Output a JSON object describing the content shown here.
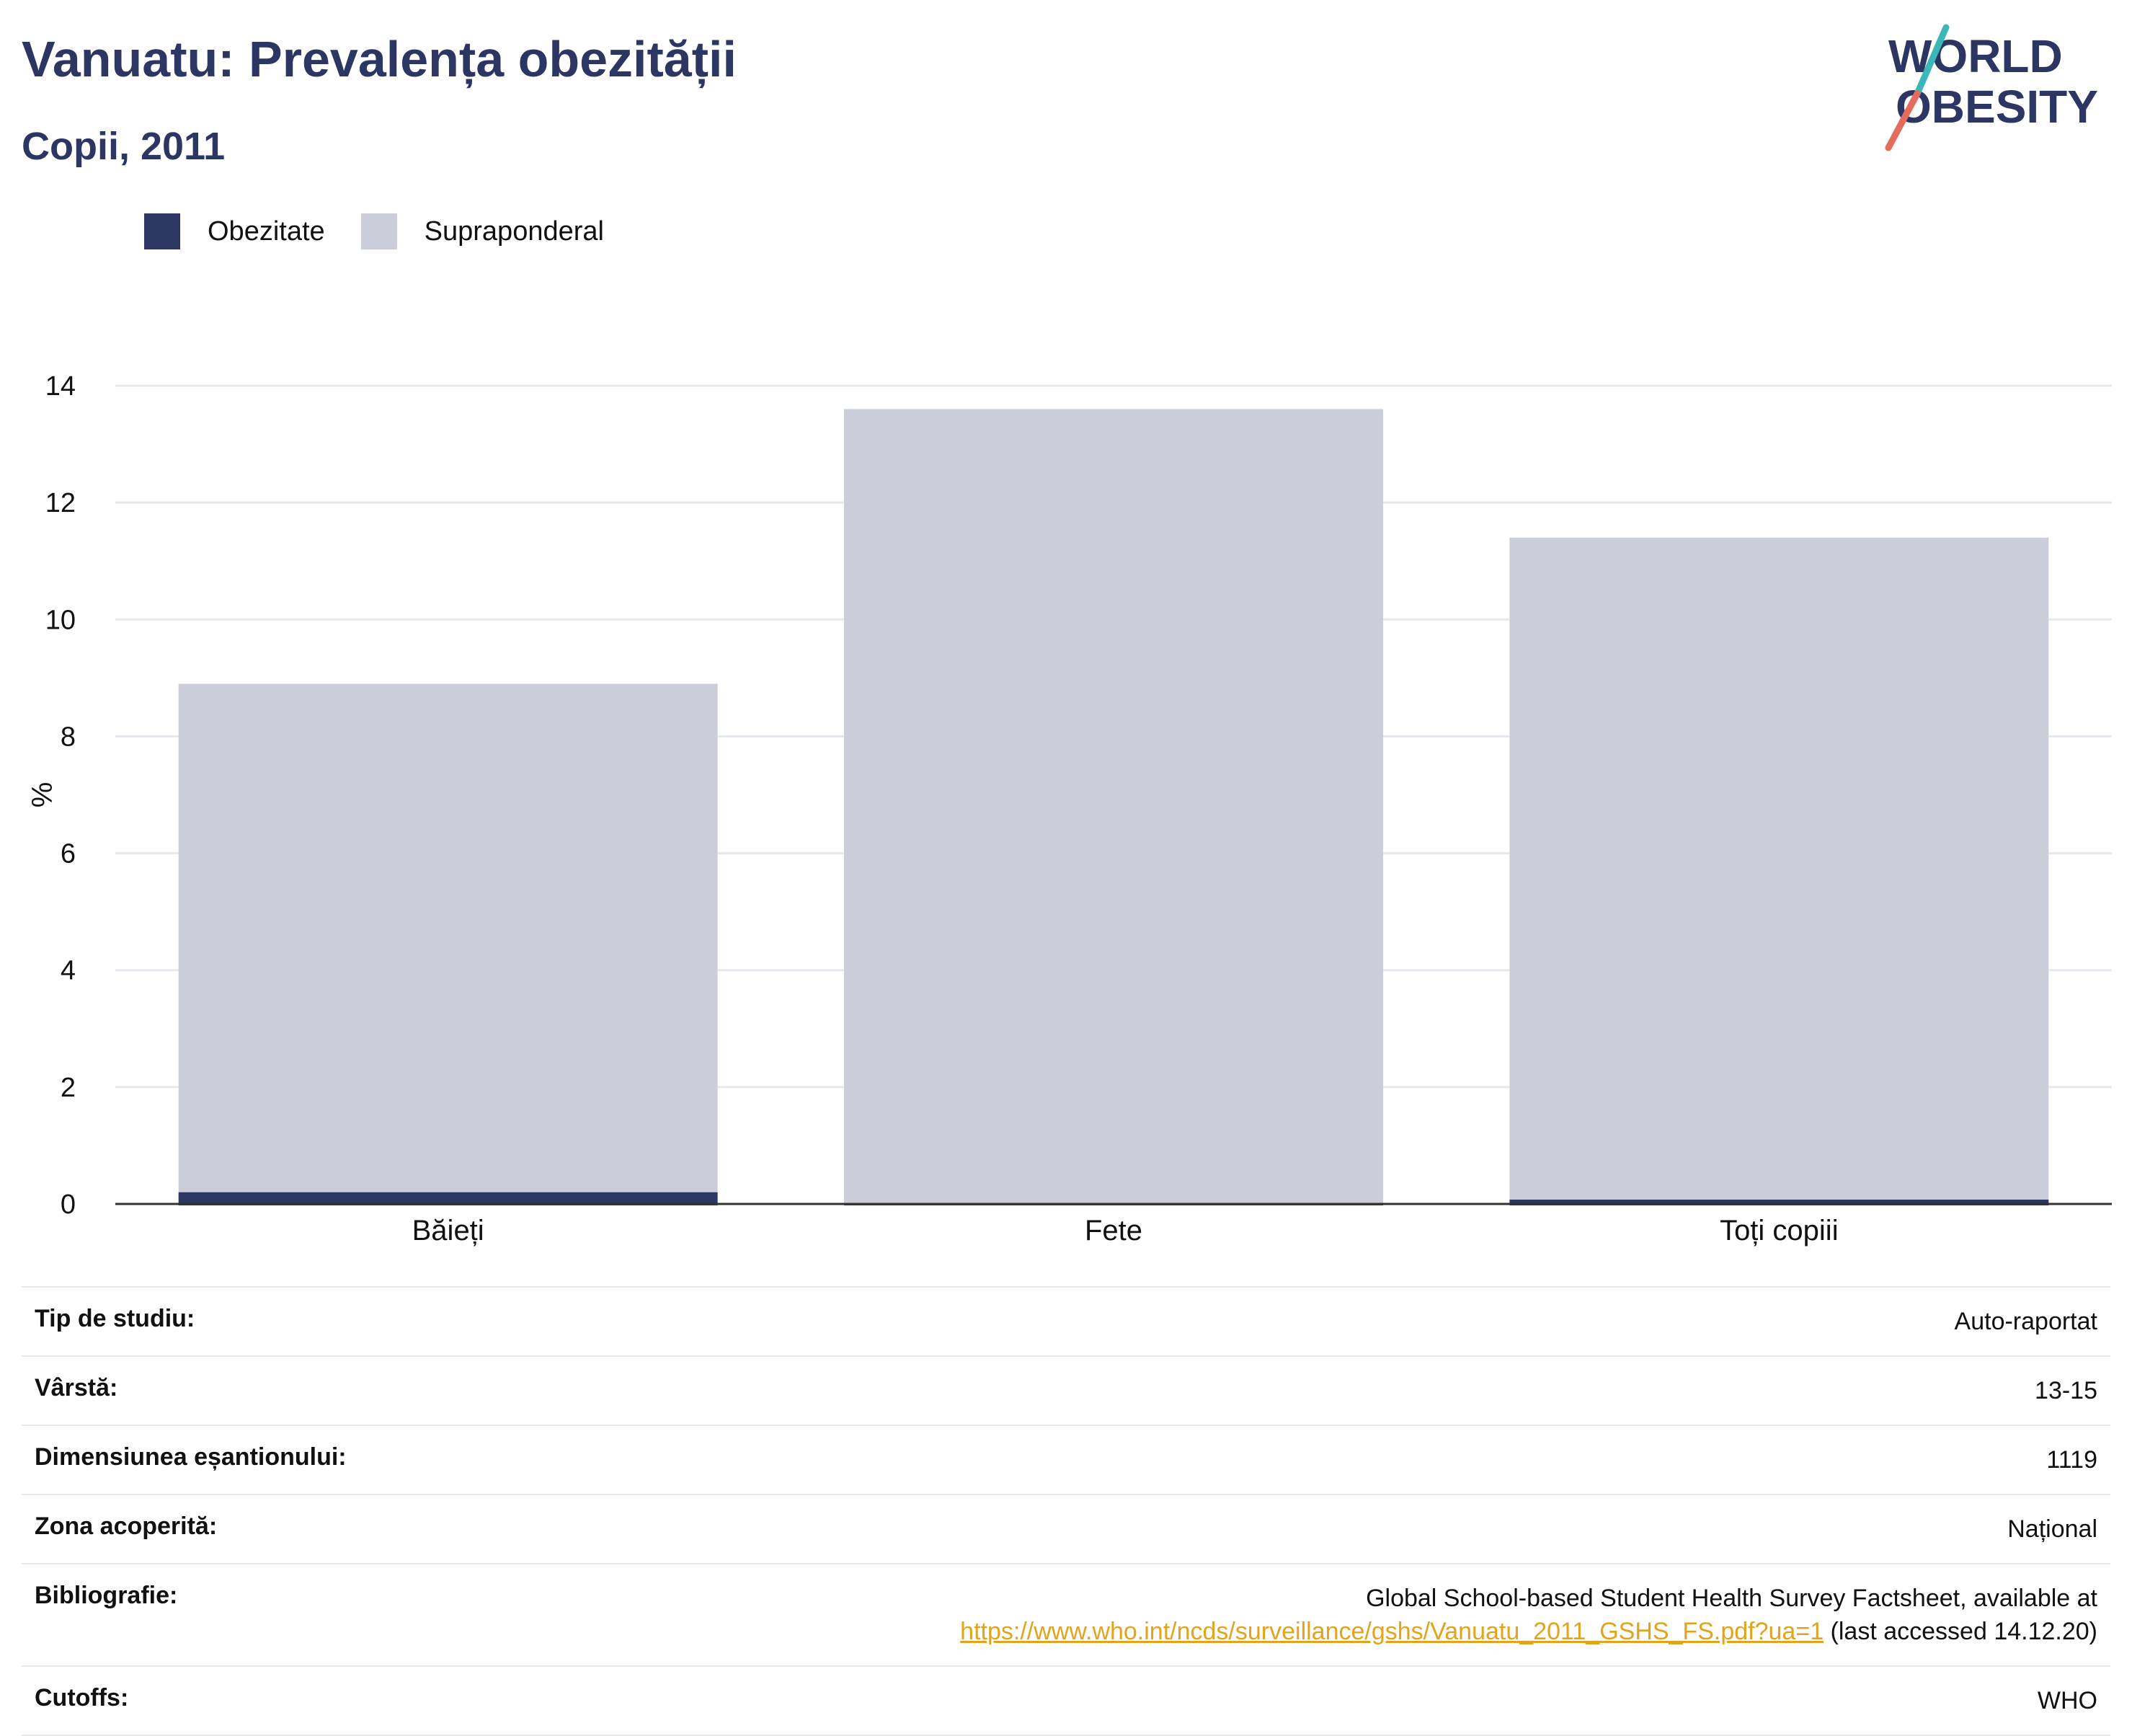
{
  "header": {
    "title": "Vanuatu: Prevalența obezității",
    "subtitle": "Copii, 2011"
  },
  "logo": {
    "line1": "WORLD",
    "line2": "OBESITY"
  },
  "colors": {
    "obesity": "#2b3663",
    "overweight": "#cbcdd8",
    "title": "#2b3663",
    "link": "#e0a51c"
  },
  "chart_data": {
    "type": "bar",
    "stacked": false,
    "categories": [
      "Băieți",
      "Fete",
      "Toți copiii"
    ],
    "series": [
      {
        "name": "Supraponderal",
        "values": [
          8.9,
          13.6,
          11.4
        ]
      },
      {
        "name": "Obezitate",
        "values": [
          0.2,
          0.0,
          0.05
        ]
      }
    ],
    "ylabel": "%",
    "ylim": [
      0,
      14
    ],
    "yticks": [
      "0",
      "2",
      "4",
      "6",
      "8",
      "10",
      "12",
      "14"
    ],
    "grid": true,
    "legend_position": "top-left"
  },
  "info": {
    "rows": [
      {
        "label": "Tip de studiu:",
        "value": "Auto-raportat"
      },
      {
        "label": "Vârstă:",
        "value": "13-15"
      },
      {
        "label": "Dimensiunea eșantionului:",
        "value": "1119"
      },
      {
        "label": "Zona acoperită:",
        "value": "Național"
      },
      {
        "label": "Bibliografie:",
        "value": "Global School-based Student Health Survey Factsheet, available at",
        "link": "https://www.who.int/ncds/surveillance/gshs/Vanuatu_2011_GSHS_FS.pdf?ua=1",
        "suffix": " (last accessed 14.12.20)"
      },
      {
        "label": "Cutoffs:",
        "value": "WHO"
      }
    ]
  }
}
